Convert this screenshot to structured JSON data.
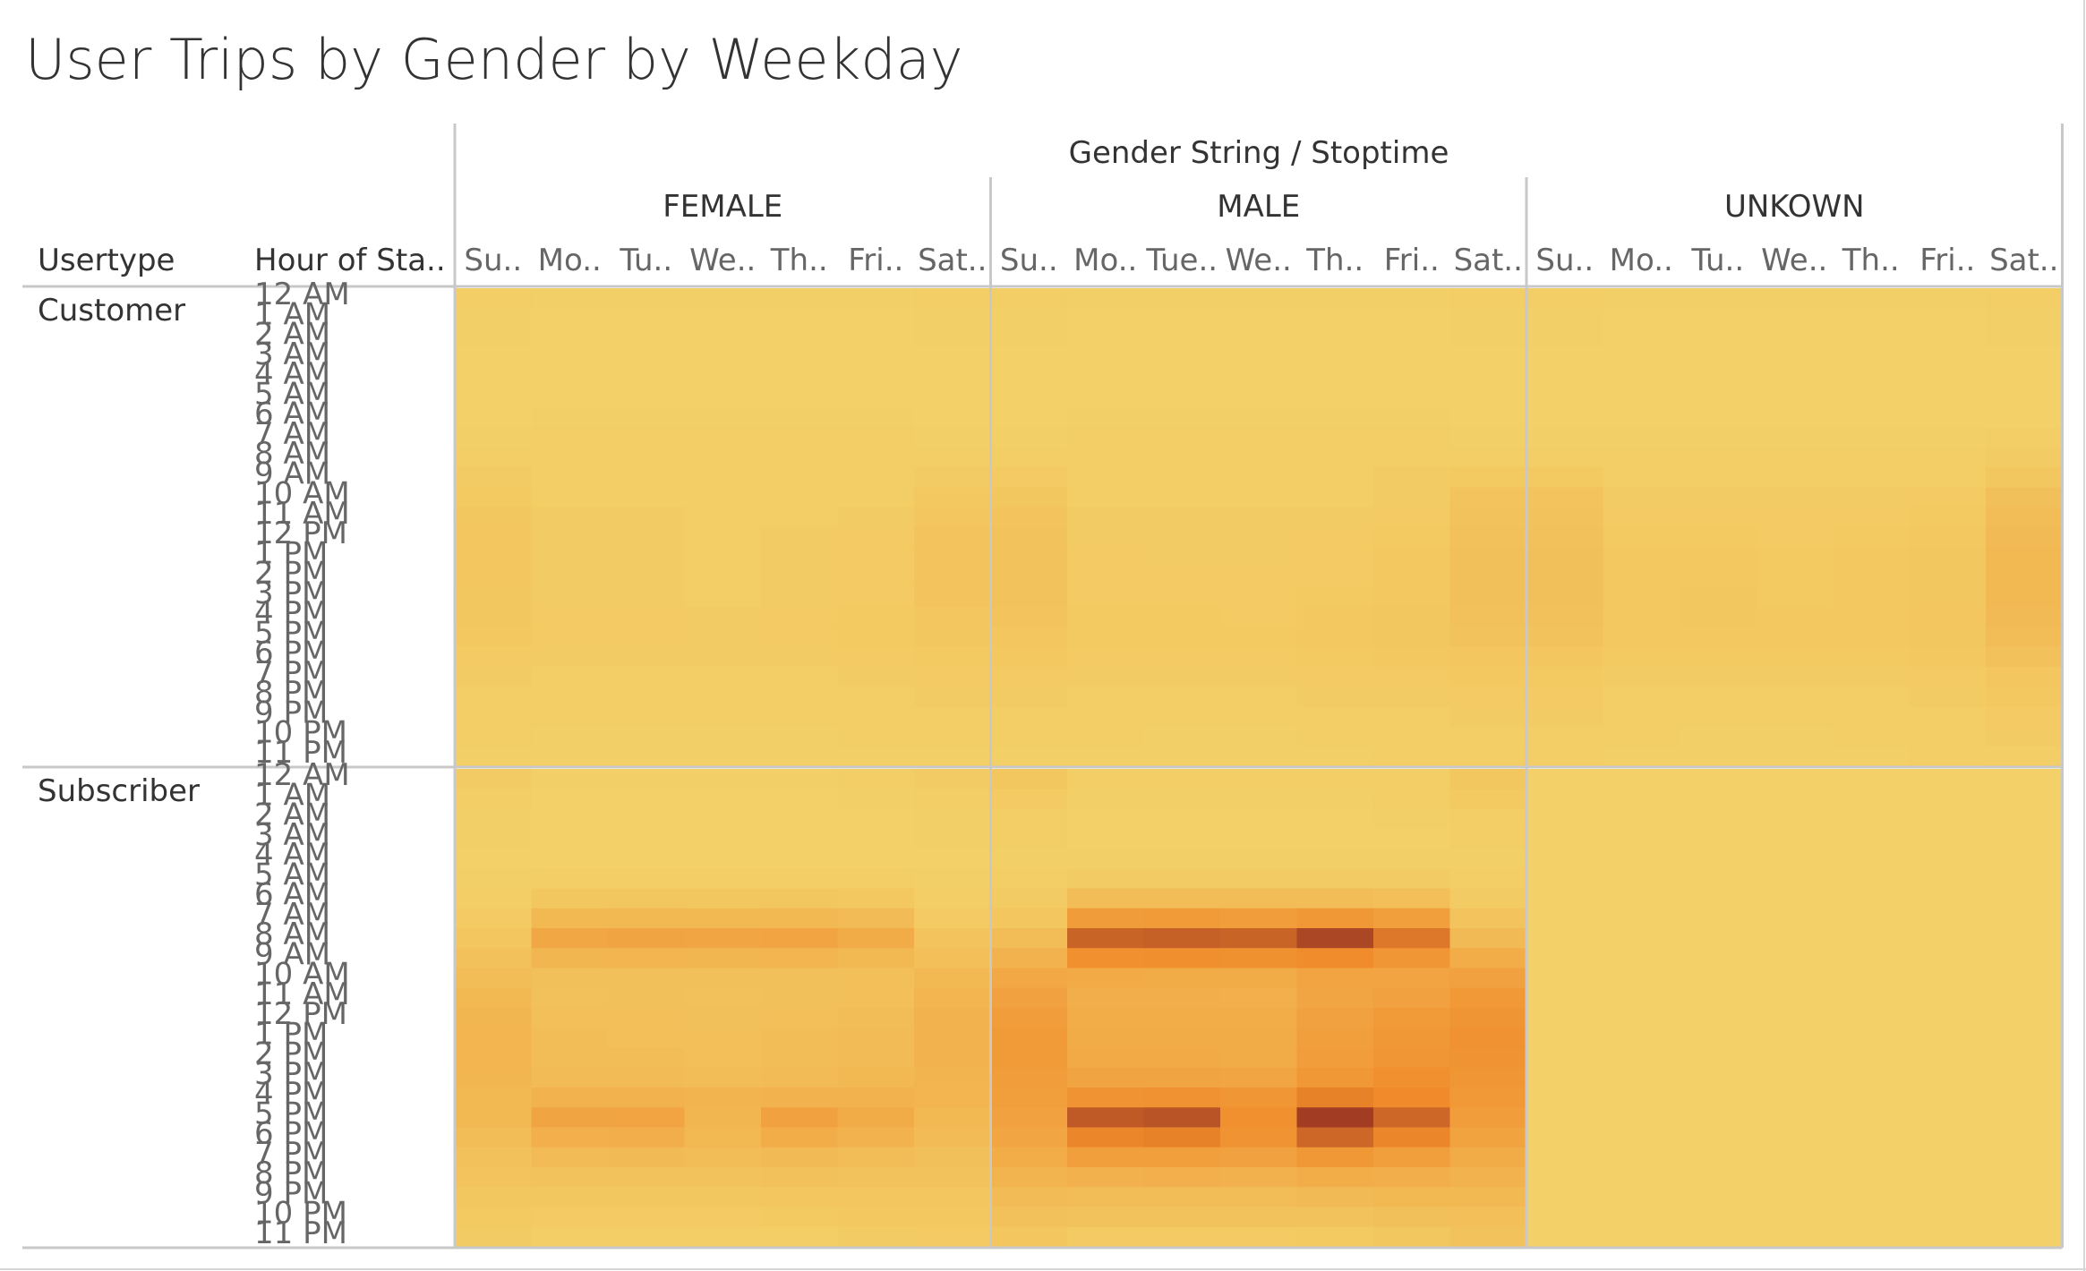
{
  "title": "User Trips by Gender by Weekday",
  "header": {
    "column_group_title": "Gender String / Stoptime",
    "row_dim_1": "Usertype",
    "row_dim_2": "Hour of Sta.."
  },
  "colors": {
    "low": "#f3d068",
    "mid": "#f08a2a",
    "high": "#a23d24",
    "border": "#c8c8c8"
  },
  "chart_data": {
    "type": "heatmap",
    "title": "User Trips by Gender by Weekday",
    "column_groups": [
      "FEMALE",
      "MALE",
      "UNKOWN"
    ],
    "column_labels": {
      "FEMALE": [
        "Su..",
        "Mo..",
        "Tu..",
        "We..",
        "Th..",
        "Fri..",
        "Sat.."
      ],
      "MALE": [
        "Su..",
        "Mo..",
        "Tue..",
        "We..",
        "Th..",
        "Fri..",
        "Sat.."
      ],
      "UNKOWN": [
        "Su..",
        "Mo..",
        "Tu..",
        "We..",
        "Th..",
        "Fri..",
        "Sat.."
      ]
    },
    "days": [
      "Sunday",
      "Monday",
      "Tuesday",
      "Wednesday",
      "Thursday",
      "Friday",
      "Saturday"
    ],
    "row_groups": [
      "Customer",
      "Subscriber"
    ],
    "hours": [
      "12 AM",
      "1 AM",
      "2 AM",
      "3 AM",
      "4 AM",
      "5 AM",
      "6 AM",
      "7 AM",
      "8 AM",
      "9 AM",
      "10 AM",
      "11 AM",
      "12 PM",
      "1 PM",
      "2 PM",
      "3 PM",
      "4 PM",
      "5 PM",
      "6 PM",
      "7 PM",
      "8 PM",
      "9 PM",
      "10 PM",
      "11 PM"
    ],
    "value_scale": "relative intensity 0-100 (trip count)",
    "values": {
      "Customer": {
        "FEMALE": [
          [
            2,
            1,
            1,
            0,
            0,
            0,
            0,
            1,
            2,
            4,
            6,
            8,
            9,
            9,
            9,
            8,
            8,
            7,
            5,
            4,
            3,
            3,
            2,
            1
          ],
          [
            1,
            0,
            0,
            0,
            0,
            0,
            1,
            2,
            3,
            3,
            3,
            4,
            4,
            4,
            4,
            4,
            5,
            5,
            4,
            3,
            3,
            2,
            1,
            1
          ],
          [
            1,
            0,
            0,
            0,
            0,
            0,
            1,
            2,
            3,
            3,
            3,
            4,
            4,
            4,
            4,
            4,
            5,
            5,
            4,
            3,
            2,
            2,
            1,
            1
          ],
          [
            1,
            0,
            0,
            0,
            0,
            0,
            1,
            2,
            3,
            3,
            3,
            3,
            3,
            3,
            3,
            3,
            4,
            4,
            4,
            3,
            2,
            2,
            1,
            1
          ],
          [
            1,
            0,
            0,
            0,
            0,
            0,
            1,
            2,
            3,
            3,
            3,
            3,
            4,
            4,
            4,
            4,
            5,
            5,
            4,
            3,
            3,
            2,
            1,
            1
          ],
          [
            1,
            0,
            0,
            0,
            0,
            0,
            1,
            2,
            3,
            3,
            3,
            4,
            5,
            5,
            5,
            5,
            6,
            6,
            5,
            4,
            3,
            2,
            2,
            1
          ],
          [
            2,
            1,
            1,
            0,
            0,
            0,
            0,
            1,
            2,
            4,
            7,
            9,
            10,
            10,
            10,
            10,
            9,
            8,
            6,
            5,
            4,
            3,
            2,
            1
          ]
        ],
        "MALE": [
          [
            2,
            1,
            1,
            0,
            0,
            0,
            0,
            1,
            3,
            5,
            8,
            10,
            11,
            12,
            12,
            11,
            10,
            9,
            7,
            5,
            4,
            3,
            2,
            1
          ],
          [
            1,
            0,
            0,
            0,
            0,
            0,
            1,
            2,
            3,
            3,
            3,
            4,
            4,
            5,
            5,
            5,
            6,
            6,
            5,
            4,
            3,
            2,
            2,
            1
          ],
          [
            1,
            0,
            0,
            0,
            0,
            0,
            1,
            2,
            3,
            3,
            3,
            4,
            4,
            4,
            5,
            5,
            6,
            6,
            5,
            4,
            3,
            2,
            1,
            1
          ],
          [
            1,
            0,
            0,
            0,
            0,
            0,
            1,
            2,
            3,
            3,
            3,
            4,
            4,
            4,
            5,
            5,
            5,
            6,
            5,
            4,
            3,
            2,
            1,
            1
          ],
          [
            1,
            0,
            0,
            0,
            0,
            0,
            1,
            2,
            3,
            3,
            3,
            4,
            5,
            5,
            5,
            6,
            7,
            7,
            6,
            5,
            4,
            3,
            2,
            1
          ],
          [
            1,
            0,
            0,
            0,
            0,
            0,
            1,
            2,
            3,
            4,
            4,
            5,
            6,
            7,
            7,
            7,
            8,
            8,
            7,
            5,
            4,
            3,
            2,
            2
          ],
          [
            2,
            1,
            1,
            0,
            0,
            0,
            0,
            1,
            3,
            6,
            10,
            12,
            13,
            14,
            14,
            14,
            13,
            12,
            9,
            7,
            5,
            4,
            3,
            2
          ]
        ],
        "UNKOWN": [
          [
            2,
            1,
            1,
            0,
            0,
            0,
            0,
            1,
            3,
            6,
            10,
            12,
            13,
            14,
            14,
            14,
            13,
            11,
            9,
            6,
            5,
            4,
            3,
            2
          ],
          [
            1,
            0,
            0,
            0,
            0,
            0,
            0,
            1,
            2,
            3,
            4,
            5,
            6,
            7,
            7,
            7,
            7,
            7,
            6,
            4,
            3,
            2,
            2,
            1
          ],
          [
            1,
            0,
            0,
            0,
            0,
            0,
            0,
            1,
            2,
            3,
            4,
            5,
            6,
            7,
            7,
            8,
            8,
            7,
            6,
            4,
            3,
            2,
            1,
            1
          ],
          [
            1,
            0,
            0,
            0,
            0,
            0,
            0,
            1,
            2,
            3,
            4,
            5,
            5,
            6,
            6,
            6,
            7,
            7,
            6,
            4,
            3,
            2,
            1,
            1
          ],
          [
            1,
            0,
            0,
            0,
            0,
            0,
            0,
            1,
            2,
            3,
            4,
            5,
            6,
            7,
            7,
            7,
            7,
            7,
            6,
            4,
            3,
            2,
            2,
            1
          ],
          [
            1,
            0,
            0,
            0,
            0,
            0,
            0,
            1,
            2,
            3,
            5,
            6,
            7,
            8,
            8,
            8,
            9,
            8,
            7,
            5,
            4,
            3,
            2,
            2
          ],
          [
            2,
            1,
            1,
            0,
            0,
            0,
            0,
            2,
            4,
            8,
            14,
            17,
            19,
            20,
            20,
            20,
            19,
            17,
            13,
            9,
            7,
            5,
            4,
            3
          ]
        ]
      },
      "Subscriber": {
        "FEMALE": [
          [
            4,
            2,
            1,
            1,
            0,
            1,
            2,
            5,
            9,
            13,
            17,
            20,
            22,
            23,
            23,
            22,
            21,
            20,
            17,
            13,
            10,
            8,
            6,
            4
          ],
          [
            1,
            0,
            0,
            0,
            0,
            2,
            8,
            20,
            35,
            22,
            14,
            13,
            15,
            16,
            16,
            18,
            25,
            37,
            28,
            18,
            12,
            8,
            5,
            2
          ],
          [
            1,
            0,
            0,
            0,
            0,
            2,
            8,
            21,
            37,
            23,
            14,
            14,
            15,
            15,
            16,
            18,
            26,
            38,
            29,
            19,
            12,
            8,
            5,
            2
          ],
          [
            1,
            0,
            0,
            0,
            0,
            2,
            8,
            20,
            36,
            22,
            14,
            13,
            14,
            15,
            15,
            17,
            24,
            22,
            21,
            17,
            12,
            8,
            5,
            3
          ],
          [
            1,
            0,
            0,
            0,
            0,
            2,
            8,
            21,
            38,
            23,
            14,
            14,
            15,
            16,
            16,
            18,
            26,
            40,
            30,
            19,
            13,
            9,
            6,
            3
          ],
          [
            2,
            1,
            0,
            0,
            0,
            2,
            7,
            18,
            32,
            21,
            15,
            15,
            17,
            18,
            18,
            20,
            25,
            32,
            25,
            17,
            12,
            9,
            7,
            4
          ],
          [
            4,
            2,
            1,
            1,
            0,
            1,
            2,
            5,
            10,
            15,
            20,
            23,
            25,
            26,
            25,
            24,
            23,
            21,
            18,
            14,
            11,
            9,
            7,
            5
          ]
        ],
        "MALE": [
          [
            8,
            5,
            3,
            2,
            1,
            2,
            4,
            9,
            17,
            26,
            34,
            40,
            44,
            46,
            46,
            44,
            42,
            40,
            36,
            30,
            24,
            18,
            13,
            9
          ],
          [
            2,
            1,
            0,
            0,
            1,
            4,
            17,
            45,
            80,
            55,
            33,
            29,
            30,
            32,
            33,
            37,
            52,
            85,
            62,
            42,
            27,
            17,
            11,
            5
          ],
          [
            2,
            1,
            0,
            0,
            1,
            4,
            17,
            46,
            82,
            56,
            32,
            29,
            30,
            31,
            33,
            37,
            53,
            88,
            64,
            43,
            28,
            17,
            11,
            5
          ],
          [
            2,
            1,
            0,
            0,
            1,
            4,
            16,
            44,
            80,
            54,
            31,
            28,
            30,
            31,
            32,
            36,
            50,
            55,
            52,
            40,
            27,
            17,
            11,
            5
          ],
          [
            2,
            1,
            0,
            0,
            1,
            4,
            17,
            48,
            95,
            58,
            38,
            36,
            40,
            42,
            44,
            48,
            64,
            100,
            78,
            48,
            30,
            19,
            12,
            6
          ],
          [
            3,
            2,
            1,
            0,
            1,
            4,
            15,
            42,
            70,
            50,
            38,
            40,
            46,
            48,
            50,
            55,
            60,
            78,
            62,
            42,
            29,
            20,
            14,
            8
          ],
          [
            8,
            6,
            3,
            2,
            1,
            2,
            4,
            10,
            19,
            30,
            40,
            47,
            51,
            53,
            52,
            50,
            47,
            44,
            39,
            32,
            26,
            20,
            15,
            11
          ]
        ],
        "UNKOWN": [
          [
            0,
            0,
            0,
            0,
            0,
            0,
            0,
            0,
            0,
            0,
            0,
            0,
            0,
            0,
            0,
            0,
            0,
            0,
            0,
            0,
            0,
            0,
            0,
            0
          ],
          [
            0,
            0,
            0,
            0,
            0,
            0,
            0,
            0,
            0,
            0,
            0,
            0,
            0,
            0,
            0,
            0,
            0,
            0,
            0,
            0,
            0,
            0,
            0,
            0
          ],
          [
            0,
            0,
            0,
            0,
            0,
            0,
            0,
            0,
            0,
            0,
            0,
            0,
            0,
            0,
            0,
            0,
            0,
            0,
            0,
            0,
            0,
            0,
            0,
            0
          ],
          [
            0,
            0,
            0,
            0,
            0,
            0,
            0,
            0,
            0,
            0,
            0,
            0,
            0,
            0,
            0,
            0,
            0,
            0,
            0,
            0,
            0,
            0,
            0,
            0
          ],
          [
            0,
            0,
            0,
            0,
            0,
            0,
            0,
            0,
            0,
            0,
            0,
            0,
            0,
            0,
            0,
            0,
            0,
            0,
            0,
            0,
            0,
            0,
            0,
            0
          ],
          [
            0,
            0,
            0,
            0,
            0,
            0,
            0,
            0,
            0,
            0,
            0,
            0,
            0,
            0,
            0,
            0,
            0,
            0,
            0,
            0,
            0,
            0,
            0,
            0
          ],
          [
            0,
            0,
            0,
            0,
            0,
            0,
            0,
            0,
            0,
            0,
            0,
            0,
            0,
            0,
            0,
            0,
            0,
            0,
            0,
            0,
            0,
            0,
            0,
            0
          ]
        ]
      }
    }
  }
}
